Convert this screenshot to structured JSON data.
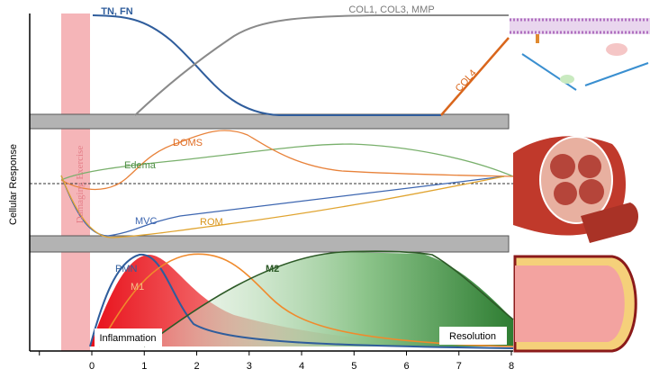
{
  "figure": {
    "y_axis_label": "Cellular Response",
    "exercise_label": "Damaging Exercise",
    "x_tick_labels": [
      "0",
      "1",
      "2",
      "3",
      "4",
      "5",
      "6",
      "7",
      "8"
    ],
    "top_panel": {
      "labels": [
        "TN, FN",
        "COL1, COL3, MMP",
        "COL4"
      ]
    },
    "middle_panel": {
      "labels": [
        "DOMS",
        "Edema",
        "MVC",
        "ROM"
      ]
    },
    "bottom_panel": {
      "labels": [
        "PMN",
        "M1",
        "M2"
      ],
      "phases": [
        "Inflammation",
        "Resolution"
      ]
    }
  }
}
